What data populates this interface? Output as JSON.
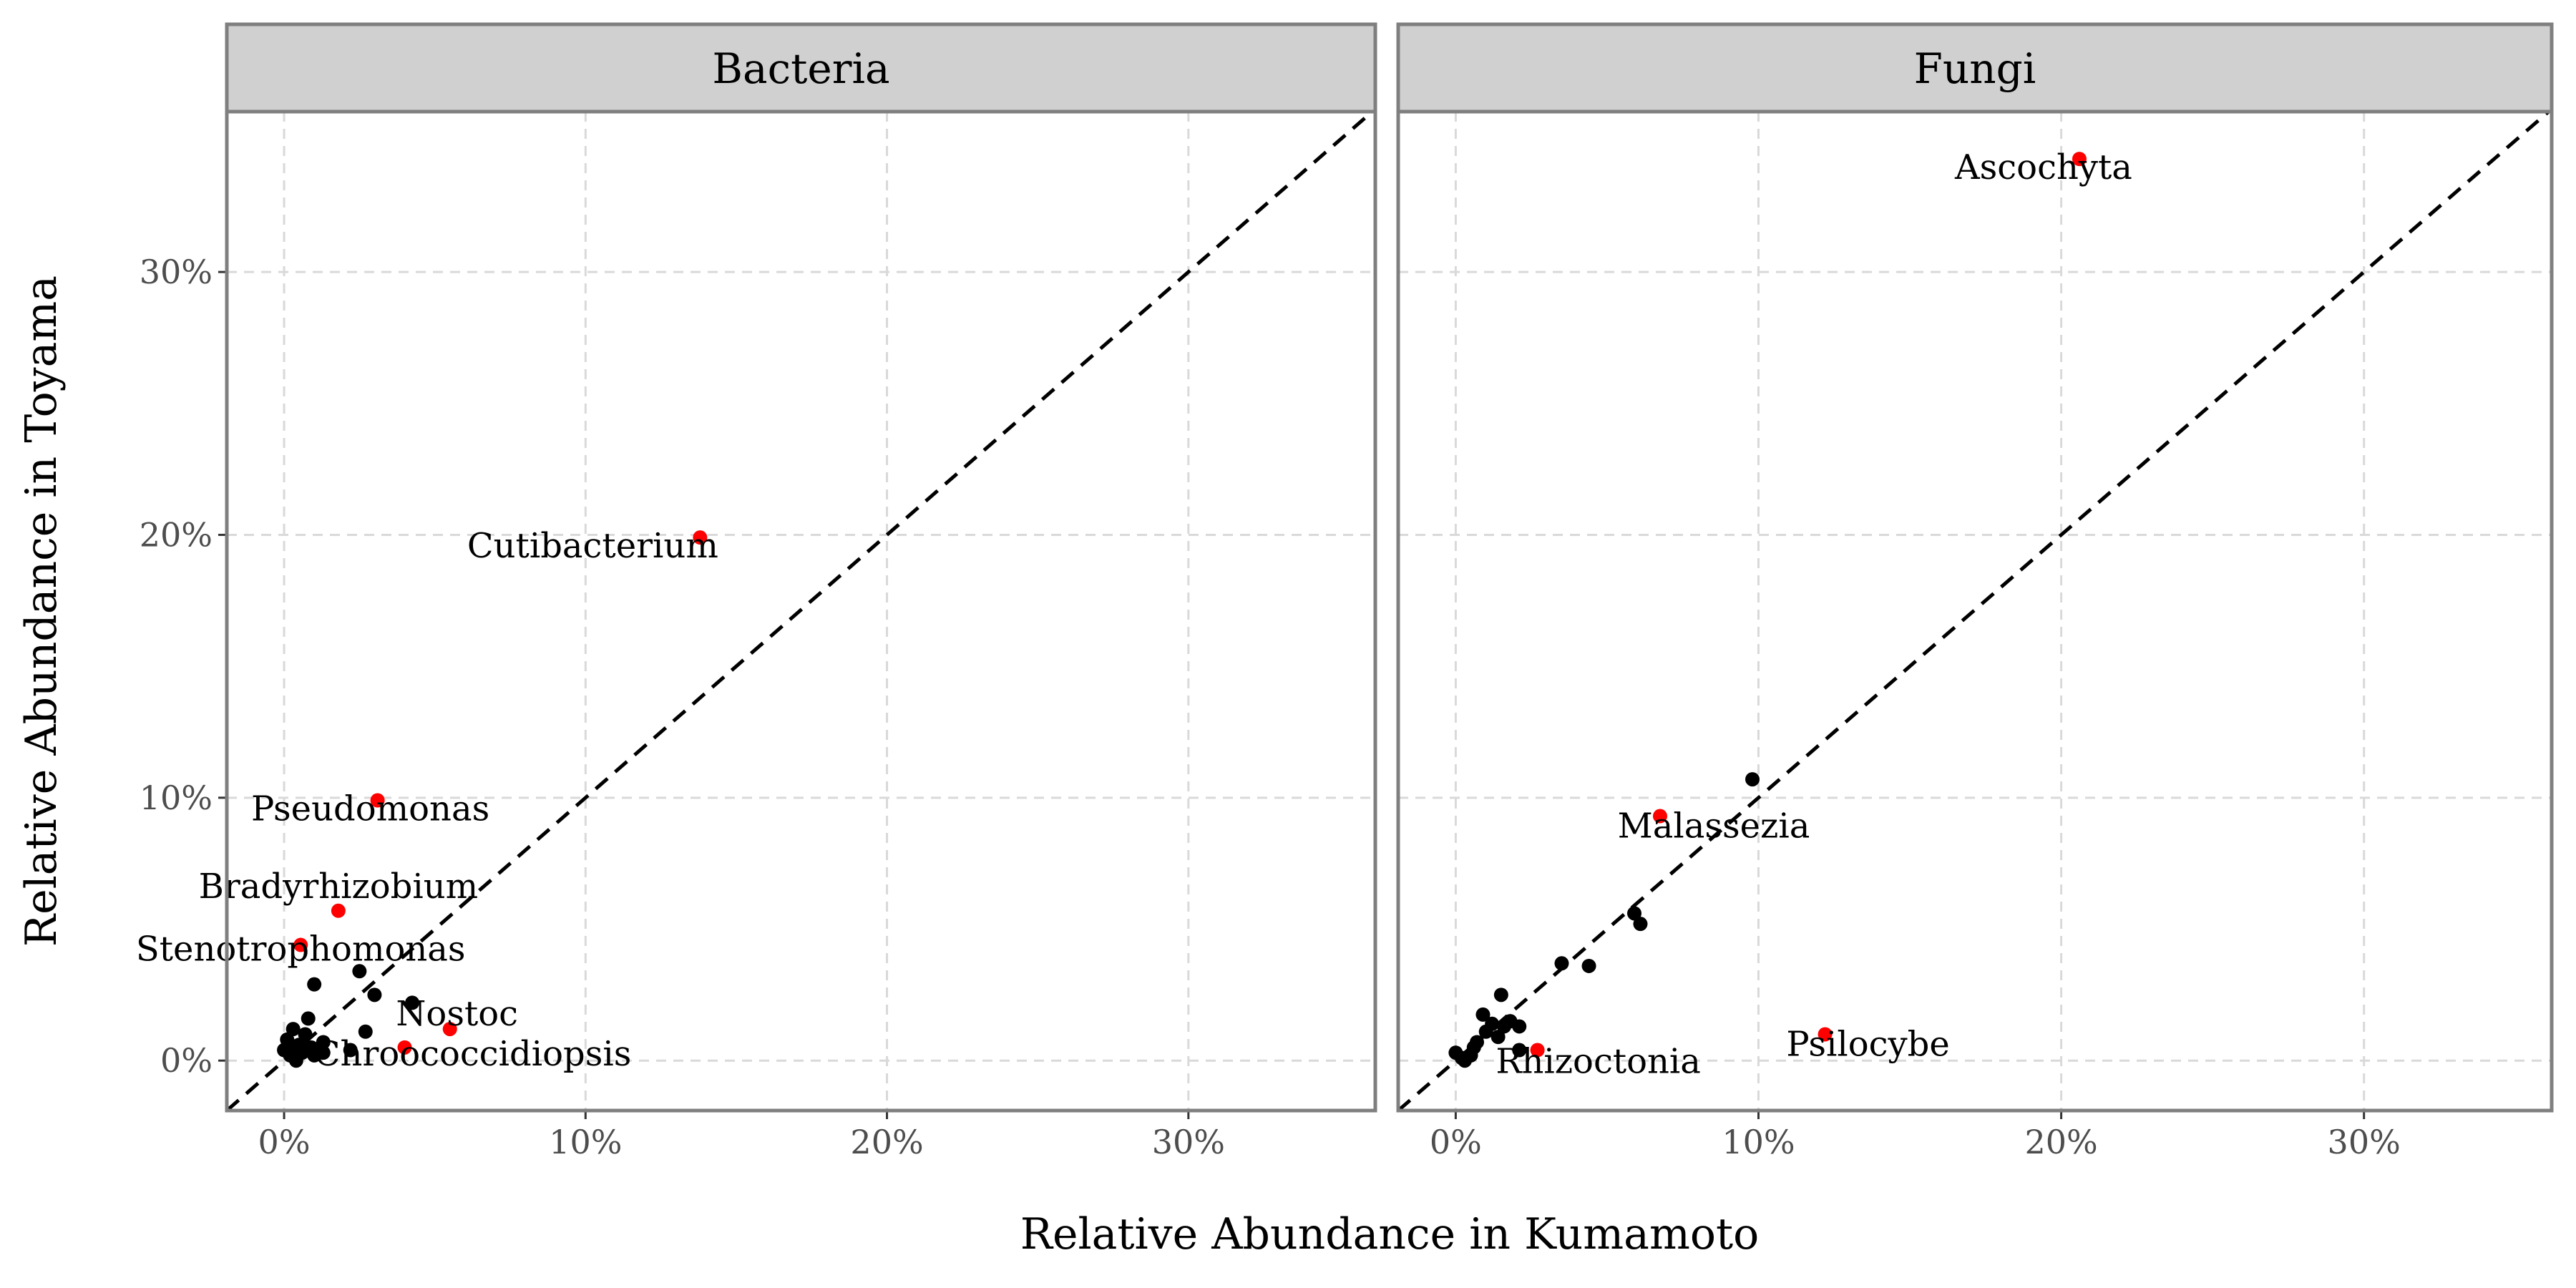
{
  "chart_data": [
    {
      "type": "scatter",
      "panel": "Bacteria",
      "xlim": [
        -1.9,
        36.2
      ],
      "ylim": [
        -1.9,
        36.1
      ],
      "highlight_color": "#ff0000",
      "point_color": "#000000",
      "labeled_points": [
        {
          "label": "Cutibacterium",
          "x": 13.8,
          "y": 19.9
        },
        {
          "label": "Pseudomonas",
          "x": 3.1,
          "y": 9.9
        },
        {
          "label": "Bradyrhizobium",
          "x": 1.8,
          "y": 5.7
        },
        {
          "label": "Stenotrophomonas",
          "x": 0.55,
          "y": 4.4
        },
        {
          "label": "Nostoc",
          "x": 5.5,
          "y": 1.2
        },
        {
          "label": "Chroococcidiopsis",
          "x": 4.0,
          "y": 0.5
        }
      ],
      "points": [
        [
          1.0,
          2.9
        ],
        [
          2.5,
          3.4
        ],
        [
          3.0,
          2.5
        ],
        [
          4.25,
          2.2
        ],
        [
          2.7,
          1.1
        ],
        [
          2.2,
          0.4
        ],
        [
          0.8,
          1.6
        ],
        [
          0.3,
          1.2
        ],
        [
          0.1,
          0.8
        ],
        [
          0.5,
          0.6
        ],
        [
          0.2,
          0.2
        ],
        [
          0.6,
          0.3
        ],
        [
          0.9,
          0.5
        ],
        [
          1.3,
          0.3
        ],
        [
          1.3,
          0.7
        ],
        [
          0.4,
          0.0
        ],
        [
          0.0,
          0.4
        ],
        [
          0.7,
          1.0
        ],
        [
          1.0,
          0.2
        ],
        [
          0.2,
          0.6
        ]
      ]
    },
    {
      "type": "scatter",
      "panel": "Fungi",
      "xlim": [
        -1.9,
        36.2
      ],
      "ylim": [
        -1.9,
        36.1
      ],
      "highlight_color": "#ff0000",
      "point_color": "#000000",
      "labeled_points": [
        {
          "label": "Ascochyta",
          "x": 20.6,
          "y": 34.3
        },
        {
          "label": "Malassezia",
          "x": 6.75,
          "y": 9.3
        },
        {
          "label": "Psilocybe",
          "x": 12.2,
          "y": 1.0
        },
        {
          "label": "Rhizoctonia",
          "x": 2.7,
          "y": 0.4
        }
      ],
      "points": [
        [
          9.8,
          10.7
        ],
        [
          5.9,
          5.6
        ],
        [
          6.1,
          5.2
        ],
        [
          3.5,
          3.7
        ],
        [
          4.4,
          3.6
        ],
        [
          1.5,
          2.5
        ],
        [
          0.9,
          1.75
        ],
        [
          2.1,
          1.3
        ],
        [
          2.1,
          0.4
        ],
        [
          1.2,
          1.4
        ],
        [
          1.0,
          1.1
        ],
        [
          1.4,
          0.9
        ],
        [
          1.6,
          1.3
        ],
        [
          0.6,
          0.5
        ],
        [
          0.5,
          0.2
        ],
        [
          0.2,
          0.1
        ],
        [
          0.0,
          0.3
        ],
        [
          0.3,
          0.0
        ],
        [
          0.7,
          0.7
        ],
        [
          1.8,
          1.5
        ]
      ]
    }
  ],
  "x_ticks": [
    "0%",
    "10%",
    "20%",
    "30%"
  ],
  "y_ticks": [
    "0%",
    "10%",
    "20%",
    "30%"
  ],
  "tick_values": [
    0,
    10,
    20,
    30
  ],
  "xlabel": "Relative Abundance in Kumamoto",
  "ylabel": "Relative Abundance in Toyama"
}
